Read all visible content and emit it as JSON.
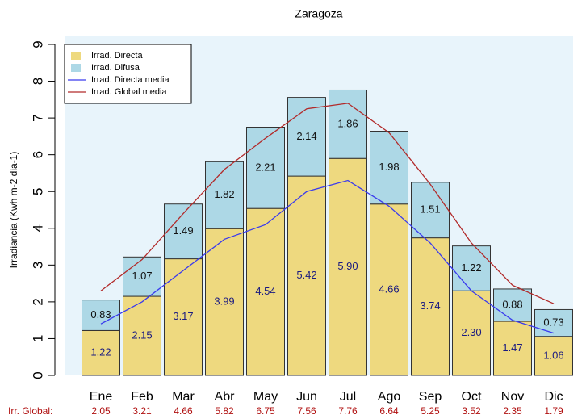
{
  "chart_data": {
    "type": "stacked_bar_line",
    "title": "Zaragoza",
    "y_label": "Irradiancia (Kwh m-2 dia-1)",
    "categories": [
      "Ene",
      "Feb",
      "Mar",
      "Abr",
      "May",
      "Jun",
      "Jul",
      "Ago",
      "Sep",
      "Oct",
      "Nov",
      "Dic"
    ],
    "series": [
      {
        "name": "Irrad. Directa",
        "color": "#eed97f",
        "label_color": "#1a1a80",
        "values": [
          1.22,
          2.15,
          3.17,
          3.99,
          4.54,
          5.42,
          5.9,
          4.66,
          3.74,
          2.3,
          1.47,
          1.06
        ],
        "value_labels": [
          "1.22",
          "2.15",
          "3.17",
          "3.99",
          "4.54",
          "5.42",
          "5.90",
          "4.66",
          "3.74",
          "2.30",
          "1.47",
          "1.06"
        ]
      },
      {
        "name": "Irrad. Difusa",
        "color": "#add8e6",
        "label_color": "#111111",
        "values": [
          0.83,
          1.07,
          1.49,
          1.82,
          2.21,
          2.14,
          1.86,
          1.98,
          1.51,
          1.22,
          0.88,
          0.73
        ],
        "value_labels": [
          "0.83",
          "1.07",
          "1.49",
          "1.82",
          "2.21",
          "2.14",
          "1.86",
          "1.98",
          "1.51",
          "1.22",
          "0.88",
          "0.73"
        ]
      }
    ],
    "lines": [
      {
        "name": "Irrad. Directa media",
        "color": "#3a3aee",
        "values": [
          1.4,
          2.0,
          2.85,
          3.7,
          4.1,
          5.0,
          5.3,
          4.6,
          3.6,
          2.3,
          1.5,
          1.15
        ]
      },
      {
        "name": "Irrad. Global media",
        "color": "#b22a2a",
        "values": [
          2.3,
          3.15,
          4.4,
          5.6,
          6.45,
          7.25,
          7.4,
          6.6,
          5.2,
          3.6,
          2.45,
          1.95
        ]
      }
    ],
    "global": {
      "label": "Irr. Global:",
      "color": "#b01010",
      "values": [
        "2.05",
        "3.21",
        "4.66",
        "5.82",
        "6.75",
        "7.56",
        "7.76",
        "6.64",
        "5.25",
        "3.52",
        "2.35",
        "1.79"
      ]
    },
    "ylim": [
      0,
      9
    ],
    "yticks": [
      0,
      1,
      2,
      3,
      4,
      5,
      6,
      7,
      8,
      9
    ],
    "legend": "top-left"
  }
}
